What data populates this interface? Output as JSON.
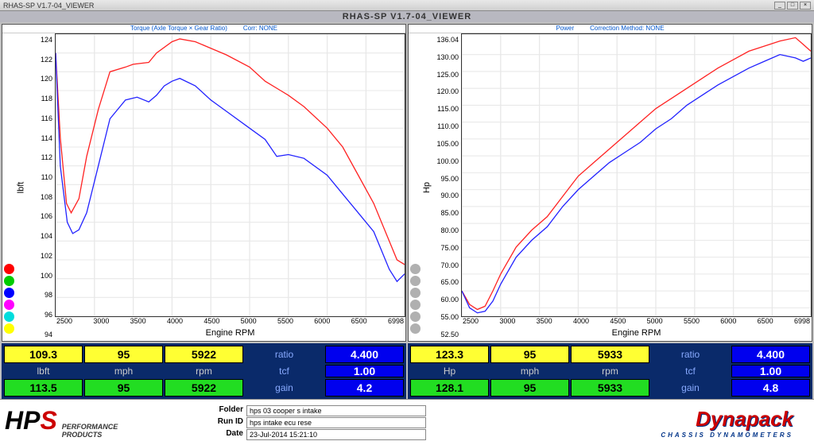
{
  "window": {
    "title": "RHAS-SP V1.7-04_VIEWER"
  },
  "app_title": "RHAS-SP V1.7-04_VIEWER",
  "torque_chart": {
    "type": "line",
    "header_left": "Torque (Axle Torque × Gear Ratio)",
    "header_right": "Corr: NONE",
    "y_label": "lbft",
    "x_label": "Engine RPM",
    "y_ticks": [
      "124",
      "122",
      "120",
      "118",
      "116",
      "114",
      "112",
      "110",
      "108",
      "106",
      "104",
      "102",
      "100",
      "98",
      "96",
      "94"
    ],
    "x_ticks": [
      "2500",
      "3000",
      "3500",
      "4000",
      "4500",
      "5000",
      "5500",
      "6000",
      "6500",
      "6998"
    ],
    "ylim": [
      94,
      124
    ],
    "xlim": [
      2500,
      6998
    ],
    "grid_color": "#e8e8e8",
    "background_color": "#ffffff",
    "legend_colors": [
      "#ff0000",
      "#00cc00",
      "#0000ff",
      "#ff00ff",
      "#00dddd",
      "#ffff00"
    ],
    "series": [
      {
        "color": "#ff2222",
        "width": 1.3,
        "points": [
          [
            2500,
            122
          ],
          [
            2560,
            113
          ],
          [
            2640,
            106
          ],
          [
            2700,
            105
          ],
          [
            2800,
            106.5
          ],
          [
            2900,
            111
          ],
          [
            3050,
            116
          ],
          [
            3200,
            120
          ],
          [
            3400,
            120.5
          ],
          [
            3500,
            120.8
          ],
          [
            3700,
            121
          ],
          [
            3800,
            122
          ],
          [
            4000,
            123.2
          ],
          [
            4100,
            123.5
          ],
          [
            4300,
            123.2
          ],
          [
            4500,
            122.5
          ],
          [
            4700,
            121.8
          ],
          [
            5000,
            120.5
          ],
          [
            5200,
            119
          ],
          [
            5400,
            118
          ],
          [
            5500,
            117.5
          ],
          [
            5700,
            116.3
          ],
          [
            6000,
            114
          ],
          [
            6200,
            112
          ],
          [
            6400,
            109
          ],
          [
            6600,
            106
          ],
          [
            6800,
            102
          ],
          [
            6900,
            100
          ],
          [
            6998,
            99.5
          ]
        ]
      },
      {
        "color": "#2222ff",
        "width": 1.3,
        "points": [
          [
            2500,
            122
          ],
          [
            2560,
            110
          ],
          [
            2650,
            104
          ],
          [
            2720,
            102.8
          ],
          [
            2800,
            103.2
          ],
          [
            2900,
            105
          ],
          [
            3050,
            110
          ],
          [
            3200,
            115
          ],
          [
            3400,
            117
          ],
          [
            3550,
            117.3
          ],
          [
            3700,
            116.8
          ],
          [
            3800,
            117.5
          ],
          [
            3900,
            118.5
          ],
          [
            4000,
            119
          ],
          [
            4100,
            119.3
          ],
          [
            4300,
            118.5
          ],
          [
            4500,
            117
          ],
          [
            4700,
            115.8
          ],
          [
            5000,
            114
          ],
          [
            5200,
            112.8
          ],
          [
            5350,
            111
          ],
          [
            5500,
            111.2
          ],
          [
            5700,
            110.8
          ],
          [
            6000,
            109
          ],
          [
            6200,
            107
          ],
          [
            6400,
            105
          ],
          [
            6600,
            103
          ],
          [
            6800,
            99
          ],
          [
            6900,
            97.7
          ],
          [
            6998,
            98.5
          ]
        ]
      }
    ]
  },
  "power_chart": {
    "type": "line",
    "header_left": "Power",
    "header_right": "Correction Method: NONE",
    "y_label": "Hp",
    "x_label": "Engine RPM",
    "y_ticks": [
      "136.04",
      "130.00",
      "125.00",
      "120.00",
      "115.00",
      "110.00",
      "105.00",
      "100.00",
      "95.00",
      "90.00",
      "85.00",
      "80.00",
      "75.00",
      "70.00",
      "65.00",
      "60.00",
      "55.00",
      "52.50"
    ],
    "x_ticks": [
      "2500",
      "3000",
      "3500",
      "4000",
      "4500",
      "5000",
      "5500",
      "6000",
      "6500",
      "6998"
    ],
    "ylim": [
      52.5,
      136.04
    ],
    "xlim": [
      2500,
      6998
    ],
    "grid_color": "#e8e8e8",
    "background_color": "#ffffff",
    "legend_colors": [
      "#b0b0b0",
      "#b0b0b0",
      "#b0b0b0",
      "#b0b0b0",
      "#b0b0b0",
      "#b0b0b0"
    ],
    "series": [
      {
        "color": "#ff2222",
        "width": 1.3,
        "points": [
          [
            2500,
            60
          ],
          [
            2600,
            56
          ],
          [
            2700,
            54.5
          ],
          [
            2800,
            55.5
          ],
          [
            2900,
            60
          ],
          [
            3000,
            65
          ],
          [
            3200,
            73
          ],
          [
            3400,
            78
          ],
          [
            3600,
            82
          ],
          [
            3800,
            88
          ],
          [
            4000,
            94
          ],
          [
            4200,
            98
          ],
          [
            4400,
            102
          ],
          [
            4600,
            106
          ],
          [
            4800,
            110
          ],
          [
            5000,
            114
          ],
          [
            5200,
            117
          ],
          [
            5400,
            120
          ],
          [
            5600,
            123
          ],
          [
            5800,
            126
          ],
          [
            6000,
            128.5
          ],
          [
            6200,
            131
          ],
          [
            6400,
            132.5
          ],
          [
            6600,
            134
          ],
          [
            6800,
            135
          ],
          [
            6900,
            133
          ],
          [
            6998,
            131
          ]
        ]
      },
      {
        "color": "#2222ff",
        "width": 1.3,
        "points": [
          [
            2500,
            60
          ],
          [
            2600,
            55
          ],
          [
            2700,
            53.5
          ],
          [
            2800,
            54
          ],
          [
            2900,
            57
          ],
          [
            3000,
            62
          ],
          [
            3200,
            70
          ],
          [
            3400,
            75
          ],
          [
            3600,
            79
          ],
          [
            3800,
            85
          ],
          [
            4000,
            90
          ],
          [
            4200,
            94
          ],
          [
            4400,
            98
          ],
          [
            4600,
            101
          ],
          [
            4800,
            104
          ],
          [
            5000,
            108
          ],
          [
            5200,
            111
          ],
          [
            5400,
            115
          ],
          [
            5600,
            118
          ],
          [
            5800,
            121
          ],
          [
            6000,
            123.5
          ],
          [
            6200,
            126
          ],
          [
            6400,
            128
          ],
          [
            6600,
            130
          ],
          [
            6800,
            129
          ],
          [
            6900,
            128
          ],
          [
            6998,
            129
          ]
        ]
      }
    ]
  },
  "readout_left": {
    "yellow": [
      "109.3",
      "95",
      "5922"
    ],
    "labels": [
      "lbft",
      "mph",
      "rpm"
    ],
    "green": [
      "113.5",
      "95",
      "5922"
    ],
    "side_labels": [
      "ratio",
      "tcf",
      "gain"
    ],
    "blue": [
      "4.400",
      "1.00",
      "4.2"
    ]
  },
  "readout_right": {
    "yellow": [
      "123.3",
      "95",
      "5933"
    ],
    "labels": [
      "Hp",
      "mph",
      "rpm"
    ],
    "green": [
      "128.1",
      "95",
      "5933"
    ],
    "side_labels": [
      "ratio",
      "tcf",
      "gain"
    ],
    "blue": [
      "4.400",
      "1.00",
      "4.8"
    ]
  },
  "meta": {
    "folder_label": "Folder",
    "folder": "hps 03 cooper s intake",
    "runid_label": "Run ID",
    "runid": "hps intake ecu rese",
    "date_label": "Date",
    "date": "23-Jul-2014  15:21:10"
  },
  "logo_hps": {
    "main": "HP",
    "s": "S",
    "line1": "PERFORMANCE",
    "line2": "PRODUCTS"
  },
  "logo_dyna": {
    "main": "Dynapack",
    "sub": "CHASSIS   DYNAMOMETERS"
  }
}
